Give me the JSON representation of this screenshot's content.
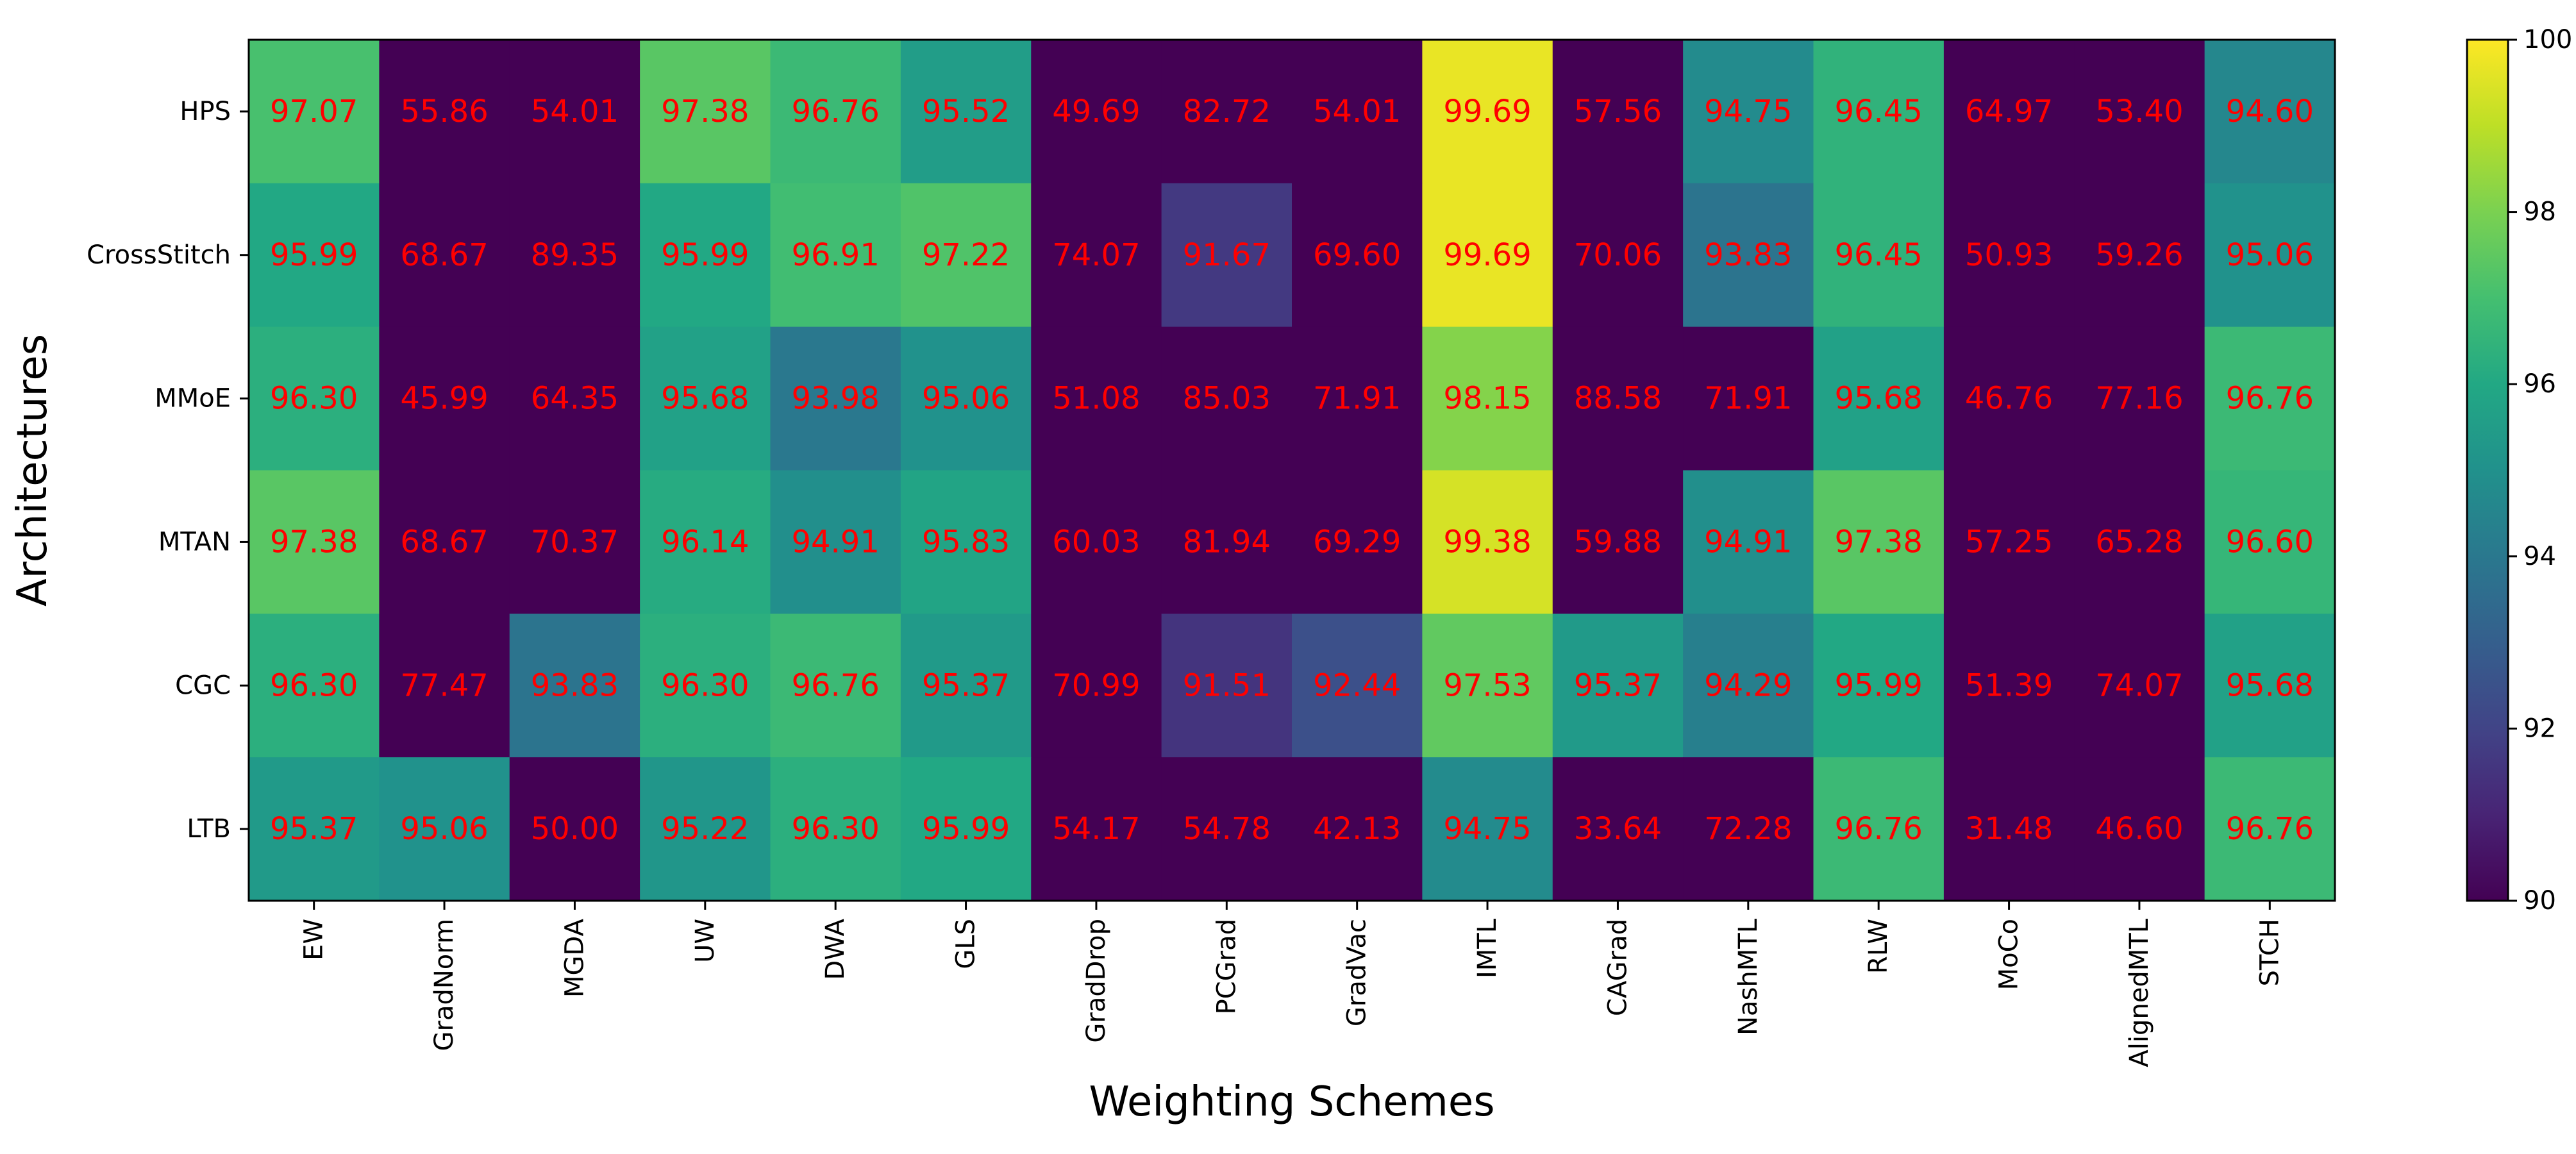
{
  "chart_data": {
    "type": "heatmap",
    "xlabel": "Weighting Schemes",
    "ylabel": "Architectures",
    "x_categories": [
      "EW",
      "GradNorm",
      "MGDA",
      "UW",
      "DWA",
      "GLS",
      "GradDrop",
      "PCGrad",
      "GradVac",
      "IMTL",
      "CAGrad",
      "NashMTL",
      "RLW",
      "MoCo",
      "AlignedMTL",
      "STCH"
    ],
    "y_categories": [
      "HPS",
      "CrossStitch",
      "MMoE",
      "MTAN",
      "CGC",
      "LTB"
    ],
    "values": [
      [
        97.07,
        55.86,
        54.01,
        97.38,
        96.76,
        95.52,
        49.69,
        82.72,
        54.01,
        99.69,
        57.56,
        94.75,
        96.45,
        64.97,
        53.4,
        94.6
      ],
      [
        95.99,
        68.67,
        89.35,
        95.99,
        96.91,
        97.22,
        74.07,
        91.67,
        69.6,
        99.69,
        70.06,
        93.83,
        96.45,
        50.93,
        59.26,
        95.06
      ],
      [
        96.3,
        45.99,
        64.35,
        95.68,
        93.98,
        95.06,
        51.08,
        85.03,
        71.91,
        98.15,
        88.58,
        71.91,
        95.68,
        46.76,
        77.16,
        96.76
      ],
      [
        97.38,
        68.67,
        70.37,
        96.14,
        94.91,
        95.83,
        60.03,
        81.94,
        69.29,
        99.38,
        59.88,
        94.91,
        97.38,
        57.25,
        65.28,
        96.6
      ],
      [
        96.3,
        77.47,
        93.83,
        96.3,
        96.76,
        95.37,
        70.99,
        91.51,
        92.44,
        97.53,
        95.37,
        94.29,
        95.99,
        51.39,
        74.07,
        95.68
      ],
      [
        95.37,
        95.06,
        50.0,
        95.22,
        96.3,
        95.99,
        54.17,
        54.78,
        42.13,
        94.75,
        33.64,
        72.28,
        96.76,
        31.48,
        46.6,
        96.76
      ]
    ],
    "value_labels": [
      [
        "97.07",
        "55.86",
        "54.01",
        "97.38",
        "96.76",
        "95.52",
        "49.69",
        "82.72",
        "54.01",
        "99.69",
        "57.56",
        "94.75",
        "96.45",
        "64.97",
        "53.40",
        "94.60"
      ],
      [
        "95.99",
        "68.67",
        "89.35",
        "95.99",
        "96.91",
        "97.22",
        "74.07",
        "91.67",
        "69.60",
        "99.69",
        "70.06",
        "93.83",
        "96.45",
        "50.93",
        "59.26",
        "95.06"
      ],
      [
        "96.30",
        "45.99",
        "64.35",
        "95.68",
        "93.98",
        "95.06",
        "51.08",
        "85.03",
        "71.91",
        "98.15",
        "88.58",
        "71.91",
        "95.68",
        "46.76",
        "77.16",
        "96.76"
      ],
      [
        "97.38",
        "68.67",
        "70.37",
        "96.14",
        "94.91",
        "95.83",
        "60.03",
        "81.94",
        "69.29",
        "99.38",
        "59.88",
        "94.91",
        "97.38",
        "57.25",
        "65.28",
        "96.60"
      ],
      [
        "96.30",
        "77.47",
        "93.83",
        "96.30",
        "96.76",
        "95.37",
        "70.99",
        "91.51",
        "92.44",
        "97.53",
        "95.37",
        "94.29",
        "95.99",
        "51.39",
        "74.07",
        "95.68"
      ],
      [
        "95.37",
        "95.06",
        "50.00",
        "95.22",
        "96.30",
        "95.99",
        "54.17",
        "54.78",
        "42.13",
        "94.75",
        "33.64",
        "72.28",
        "96.76",
        "31.48",
        "46.60",
        "96.76"
      ]
    ],
    "colormap": "viridis",
    "color_range": [
      90,
      100
    ],
    "colorbar_ticks": [
      90,
      92,
      94,
      96,
      98,
      100
    ],
    "colorbar_tick_labels": [
      "90",
      "92",
      "94",
      "96",
      "98",
      "100"
    ],
    "annotation_color": "#ff0000",
    "legend": "colorbar-right",
    "grid": false
  }
}
